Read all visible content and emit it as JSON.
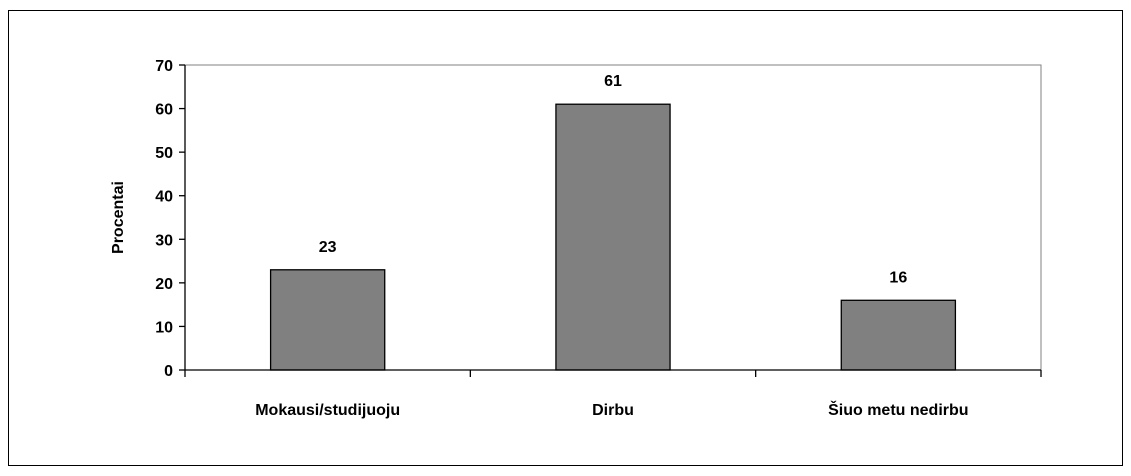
{
  "chart_data": {
    "type": "bar",
    "title": "",
    "xlabel": "",
    "ylabel": "Procentai",
    "ylim": [
      0,
      70
    ],
    "yticks": [
      0,
      10,
      20,
      30,
      40,
      50,
      60,
      70
    ],
    "categories": [
      "Mokausi/studijuoju",
      "Dirbu",
      "Šiuo metu nedirbu"
    ],
    "values": [
      23,
      61,
      16
    ],
    "data_labels": [
      "23",
      "61",
      "16"
    ],
    "grid": false,
    "legend": "none",
    "bar_color": "#808080",
    "bar_edge_color": "#000000"
  }
}
